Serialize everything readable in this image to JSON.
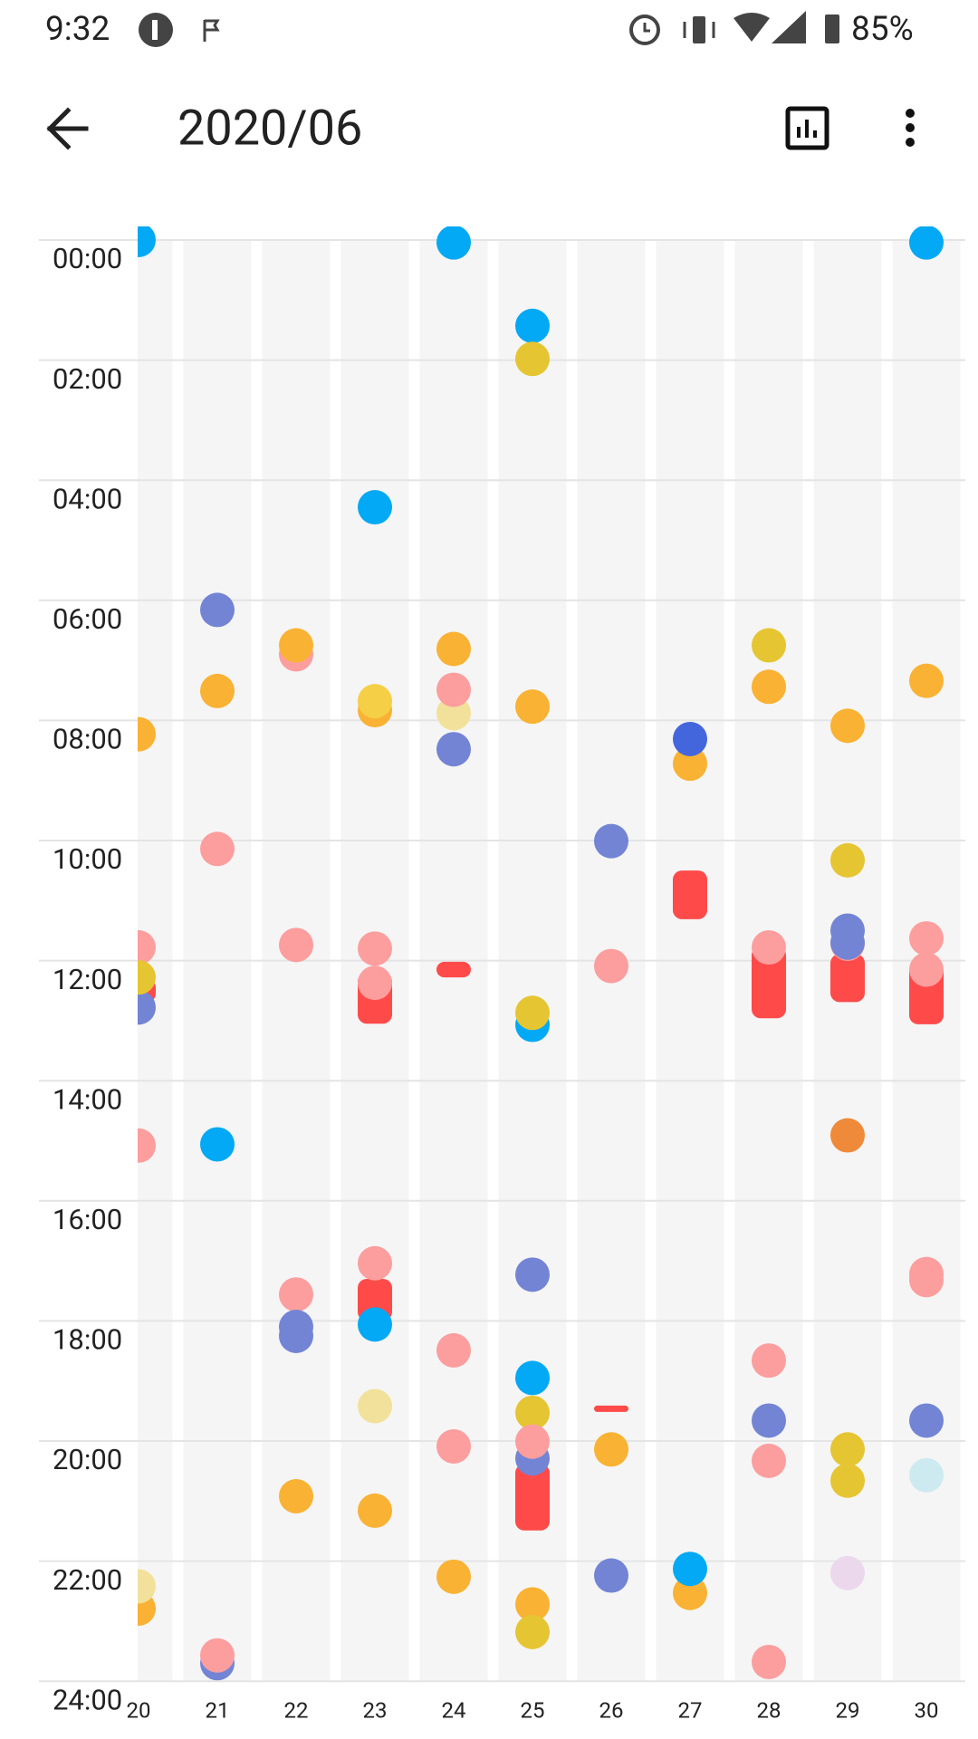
{
  "status": {
    "time": "9:32",
    "battery": "85%"
  },
  "toolbar": {
    "title": "2020/06"
  },
  "hours": [
    {
      "value": 0,
      "label": "00:00"
    },
    {
      "value": 2,
      "label": "02:00"
    },
    {
      "value": 4,
      "label": "04:00"
    },
    {
      "value": 6,
      "label": "06:00"
    },
    {
      "value": 8,
      "label": "08:00"
    },
    {
      "value": 10,
      "label": "10:00"
    },
    {
      "value": 12,
      "label": "12:00"
    },
    {
      "value": 14,
      "label": "14:00"
    },
    {
      "value": 16,
      "label": "16:00"
    },
    {
      "value": 18,
      "label": "18:00"
    },
    {
      "value": 20,
      "label": "20:00"
    },
    {
      "value": 22,
      "label": "22:00"
    },
    {
      "value": 24,
      "label": "24:00"
    }
  ],
  "columns": [
    {
      "label": "20",
      "bars": [
        {
          "start": 12.3,
          "end": 12.7,
          "color": "#ff4a4a"
        }
      ],
      "dots": [
        {
          "hour": 0.0,
          "color": "#03a9f4"
        },
        {
          "hour": 8.23,
          "color": "#f9b233"
        },
        {
          "hour": 11.78,
          "color": "#fc9e9e"
        },
        {
          "hour": 12.78,
          "color": "#7384d5"
        },
        {
          "hour": 12.28,
          "color": "#e6c532"
        },
        {
          "hour": 15.08,
          "color": "#fc9e9e"
        },
        {
          "hour": 22.79,
          "color": "#f9b233"
        },
        {
          "hour": 22.42,
          "color": "#f2e19a"
        }
      ]
    },
    {
      "label": "21",
      "bars": [],
      "dots": [
        {
          "hour": 6.16,
          "color": "#7384d5"
        },
        {
          "hour": 7.51,
          "color": "#f9b233"
        },
        {
          "hour": 10.14,
          "color": "#fc9e9e"
        },
        {
          "hour": 15.06,
          "color": "#03a9f4"
        },
        {
          "hour": 23.7,
          "color": "#7384d5"
        },
        {
          "hour": 23.57,
          "color": "#fc9e9e"
        }
      ]
    },
    {
      "label": "22",
      "bars": [],
      "dots": [
        {
          "hour": 6.9,
          "color": "#fc9e9e"
        },
        {
          "hour": 6.75,
          "color": "#f9b233"
        },
        {
          "hour": 11.74,
          "color": "#fc9e9e"
        },
        {
          "hour": 17.56,
          "color": "#fc9e9e"
        },
        {
          "hour": 18.25,
          "color": "#7384d5"
        },
        {
          "hour": 18.1,
          "color": "#7384d5"
        },
        {
          "hour": 20.92,
          "color": "#f9b233"
        }
      ]
    },
    {
      "label": "23",
      "bars": [
        {
          "start": 12.2,
          "end": 13.05,
          "color": "#ff4a4a"
        },
        {
          "start": 17.3,
          "end": 18.0,
          "color": "#ff4a4a"
        }
      ],
      "dots": [
        {
          "hour": 4.45,
          "color": "#03a9f4"
        },
        {
          "hour": 7.83,
          "color": "#f9b233"
        },
        {
          "hour": 7.68,
          "color": "#f5cf45"
        },
        {
          "hour": 11.8,
          "color": "#fc9e9e"
        },
        {
          "hour": 12.37,
          "color": "#fc9e9e"
        },
        {
          "hour": 17.04,
          "color": "#fc9e9e"
        },
        {
          "hour": 18.06,
          "color": "#03a9f4"
        },
        {
          "hour": 19.42,
          "color": "#f2e19a"
        },
        {
          "hour": 21.16,
          "color": "#f9b233"
        }
      ]
    },
    {
      "label": "24",
      "bars": [
        {
          "start": 12.02,
          "end": 12.28,
          "color": "#ff4a4a"
        }
      ],
      "dots": [
        {
          "hour": 0.04,
          "color": "#03a9f4"
        },
        {
          "hour": 6.81,
          "color": "#f9b233"
        },
        {
          "hour": 7.88,
          "color": "#f2e19a"
        },
        {
          "hour": 7.49,
          "color": "#fc9e9e"
        },
        {
          "hour": 8.48,
          "color": "#7384d5"
        },
        {
          "hour": 18.49,
          "color": "#fc9e9e"
        },
        {
          "hour": 20.09,
          "color": "#fc9e9e"
        },
        {
          "hour": 22.26,
          "color": "#f9b233"
        }
      ]
    },
    {
      "label": "25",
      "bars": [
        {
          "start": 20.38,
          "end": 21.49,
          "color": "#ff4a4a"
        }
      ],
      "dots": [
        {
          "hour": 1.43,
          "color": "#03a9f4"
        },
        {
          "hour": 1.98,
          "color": "#e6c532"
        },
        {
          "hour": 7.77,
          "color": "#f9b233"
        },
        {
          "hour": 13.07,
          "color": "#03a9f4"
        },
        {
          "hour": 12.87,
          "color": "#e6c532"
        },
        {
          "hour": 17.23,
          "color": "#7384d5"
        },
        {
          "hour": 18.95,
          "color": "#03a9f4"
        },
        {
          "hour": 19.53,
          "color": "#e6c532"
        },
        {
          "hour": 20.29,
          "color": "#7384d5"
        },
        {
          "hour": 20.01,
          "color": "#fc9e9e"
        },
        {
          "hour": 22.72,
          "color": "#f9b233"
        },
        {
          "hour": 23.18,
          "color": "#e6c532"
        }
      ]
    },
    {
      "label": "26",
      "bars": [
        {
          "start": 19.41,
          "end": 19.47,
          "color": "#ff4a4a"
        }
      ],
      "dots": [
        {
          "hour": 10.01,
          "color": "#7384d5"
        },
        {
          "hour": 12.09,
          "color": "#fc9e9e"
        },
        {
          "hour": 20.14,
          "color": "#f9b233"
        },
        {
          "hour": 22.24,
          "color": "#7384d5"
        }
      ]
    },
    {
      "label": "27",
      "bars": [
        {
          "start": 10.5,
          "end": 11.31,
          "color": "#ff4a4a"
        }
      ],
      "dots": [
        {
          "hour": 8.72,
          "color": "#f9b233"
        },
        {
          "hour": 8.31,
          "color": "#4466dd"
        },
        {
          "hour": 22.53,
          "color": "#f9b233"
        },
        {
          "hour": 22.13,
          "color": "#03a9f4"
        }
      ]
    },
    {
      "label": "28",
      "bars": [
        {
          "start": 11.76,
          "end": 12.96,
          "color": "#ff4a4a"
        }
      ],
      "dots": [
        {
          "hour": 6.75,
          "color": "#e6c532"
        },
        {
          "hour": 7.44,
          "color": "#f9b233"
        },
        {
          "hour": 11.78,
          "color": "#fc9e9e"
        },
        {
          "hour": 18.66,
          "color": "#fc9e9e"
        },
        {
          "hour": 19.66,
          "color": "#7384d5"
        },
        {
          "hour": 20.33,
          "color": "#fc9e9e"
        },
        {
          "hour": 23.68,
          "color": "#fc9e9e"
        }
      ]
    },
    {
      "label": "29",
      "bars": [
        {
          "start": 11.89,
          "end": 12.69,
          "color": "#ff4a4a"
        }
      ],
      "dots": [
        {
          "hour": 8.09,
          "color": "#f9b233"
        },
        {
          "hour": 10.33,
          "color": "#e6c532"
        },
        {
          "hour": 11.72,
          "color": "#fc9e9e"
        },
        {
          "hour": 11.7,
          "color": "#7384d5"
        },
        {
          "hour": 11.5,
          "color": "#7384d5"
        },
        {
          "hour": 14.91,
          "color": "#ef8a3a"
        },
        {
          "hour": 20.14,
          "color": "#e6c532"
        },
        {
          "hour": 20.66,
          "color": "#e6c532"
        },
        {
          "hour": 22.2,
          "color": "#ecd8ec"
        }
      ]
    },
    {
      "label": "30",
      "bars": [
        {
          "start": 12.04,
          "end": 13.06,
          "color": "#ff4a4a"
        }
      ],
      "dots": [
        {
          "hour": 0.04,
          "color": "#03a9f4"
        },
        {
          "hour": 7.34,
          "color": "#f9b233"
        },
        {
          "hour": 11.63,
          "color": "#fc9e9e"
        },
        {
          "hour": 12.15,
          "color": "#fc9e9e"
        },
        {
          "hour": 17.32,
          "color": "#fc9e9e"
        },
        {
          "hour": 17.22,
          "color": "#fc9e9e"
        },
        {
          "hour": 19.66,
          "color": "#7384d5"
        },
        {
          "hour": 20.57,
          "color": "#cdeaf0"
        }
      ]
    }
  ]
}
